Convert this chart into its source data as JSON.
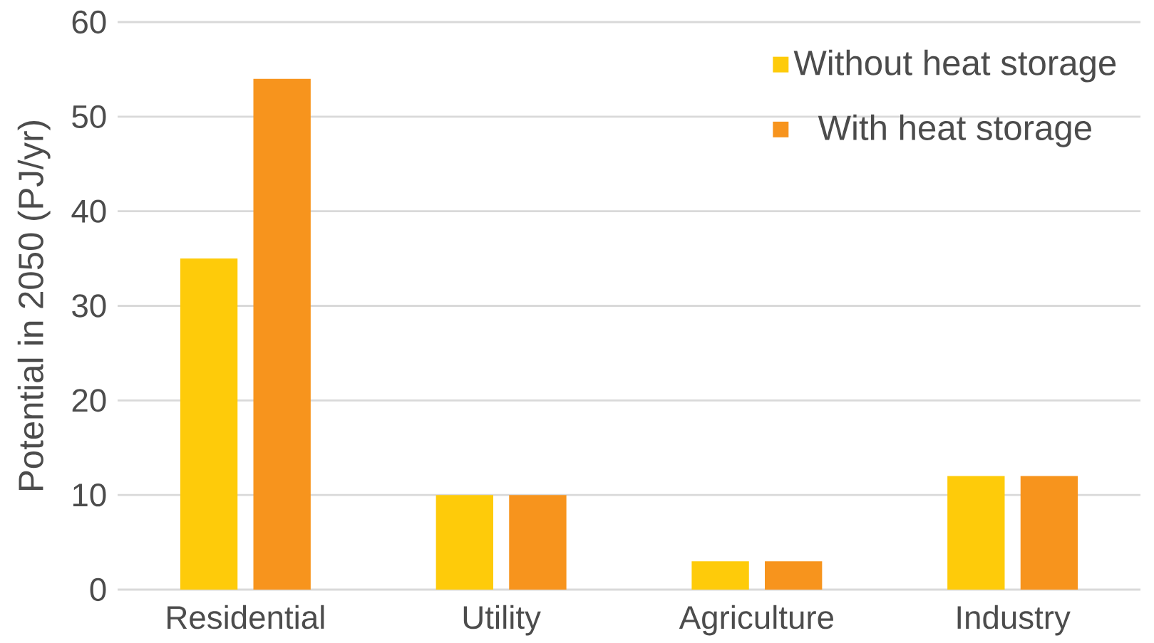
{
  "chart_data": {
    "type": "bar",
    "ylabel": "Potential in 2050 (PJ/yr)",
    "categories": [
      "Residential",
      "Utility",
      "Agriculture",
      "Industry"
    ],
    "series": [
      {
        "name": "Without heat storage",
        "color": "#fecb0a",
        "values": [
          35,
          10,
          3,
          12
        ]
      },
      {
        "name": "With heat storage",
        "color": "#f7941d",
        "values": [
          54,
          10,
          3,
          12
        ]
      }
    ],
    "ylim": [
      0,
      60
    ],
    "yticks": [
      0,
      10,
      20,
      30,
      40,
      50,
      60
    ],
    "grid": "y",
    "legend": "top right"
  }
}
